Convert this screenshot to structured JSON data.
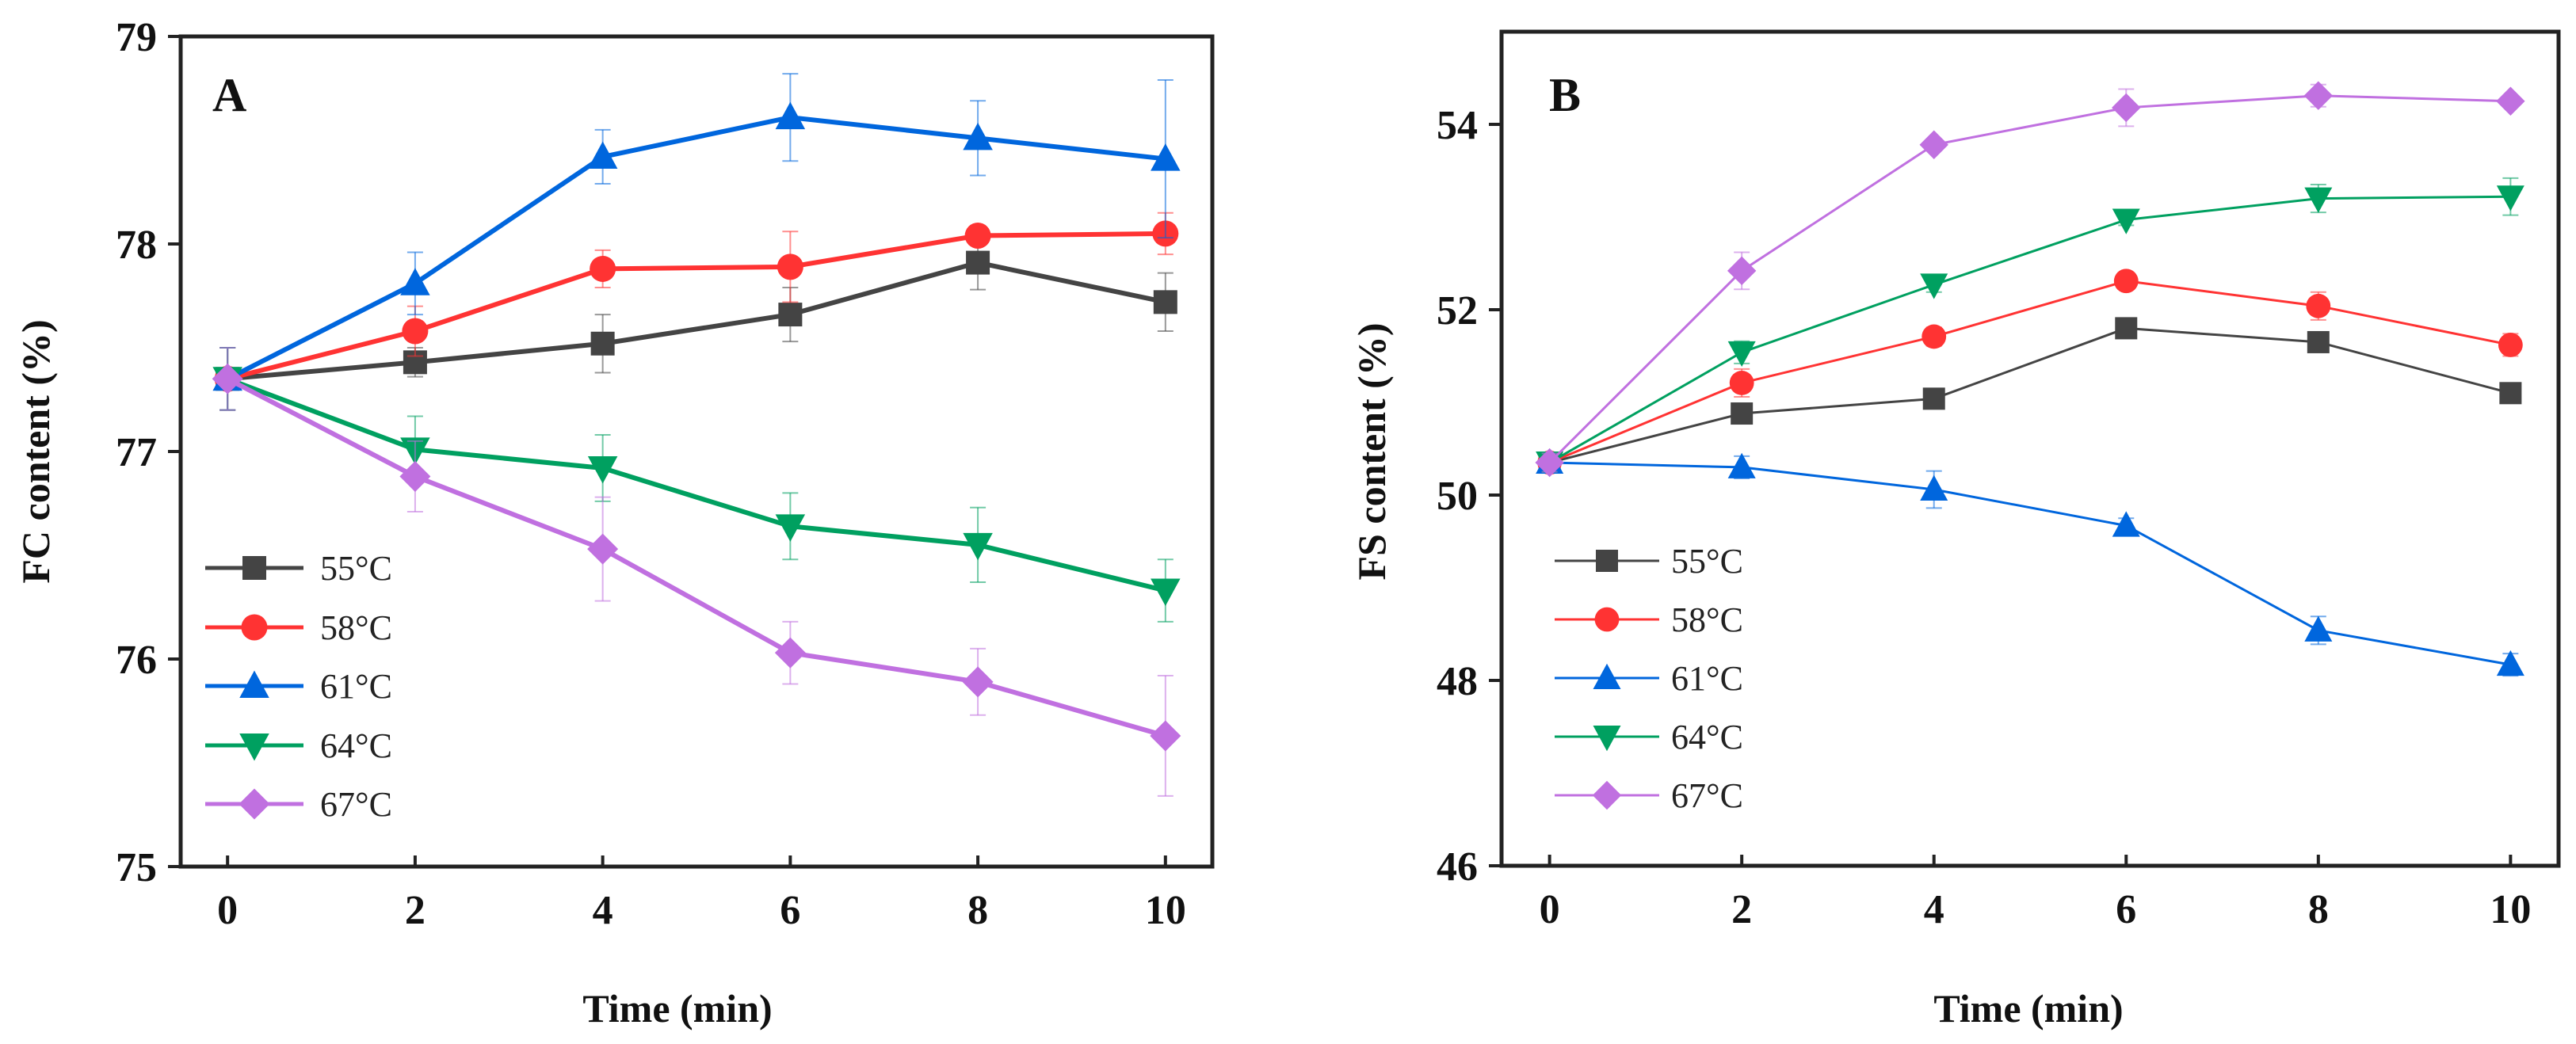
{
  "chart_data": [
    {
      "type": "line",
      "panel_label": "A",
      "xlabel": "Time (min)",
      "ylabel": "FC content (%)",
      "x": [
        0,
        2,
        4,
        6,
        8,
        10
      ],
      "xticks": [
        "0",
        "2",
        "4",
        "6",
        "8",
        "10"
      ],
      "xlim": [
        -0.5,
        10.5
      ],
      "yticks": [
        "75",
        "76",
        "77",
        "78",
        "79"
      ],
      "ylim": [
        75,
        79
      ],
      "legend_position": "bottom-left",
      "series": [
        {
          "name": "55°C",
          "color": "#444444",
          "marker": "square",
          "values": [
            77.35,
            77.43,
            77.52,
            77.66,
            77.91,
            77.72
          ],
          "errors": [
            0.15,
            0.07,
            0.14,
            0.13,
            0.13,
            0.14
          ]
        },
        {
          "name": "58°C",
          "color": "#ff3333",
          "marker": "circle",
          "values": [
            77.35,
            77.58,
            77.88,
            77.89,
            78.04,
            78.05
          ],
          "errors": [
            0.15,
            0.12,
            0.09,
            0.17,
            0.02,
            0.1
          ]
        },
        {
          "name": "61°C",
          "color": "#0066dd",
          "marker": "triangle-up",
          "values": [
            77.35,
            77.81,
            78.42,
            78.61,
            78.51,
            78.41
          ],
          "errors": [
            0.15,
            0.15,
            0.13,
            0.21,
            0.18,
            0.38
          ]
        },
        {
          "name": "64°C",
          "color": "#00a060",
          "marker": "triangle-down",
          "values": [
            77.35,
            77.01,
            76.92,
            76.64,
            76.55,
            76.33
          ],
          "errors": [
            0.15,
            0.16,
            0.16,
            0.16,
            0.18,
            0.15
          ]
        },
        {
          "name": "67°C",
          "color": "#c070e0",
          "marker": "diamond",
          "values": [
            77.35,
            76.88,
            76.53,
            76.03,
            75.89,
            75.63
          ],
          "errors": [
            0.15,
            0.17,
            0.25,
            0.15,
            0.16,
            0.29
          ]
        }
      ]
    },
    {
      "type": "line",
      "panel_label": "B",
      "xlabel": "Time (min)",
      "ylabel": "FS content (%)",
      "x": [
        0,
        2,
        4,
        6,
        8,
        10
      ],
      "xticks": [
        "0",
        "2",
        "4",
        "6",
        "8",
        "10"
      ],
      "xlim": [
        -0.5,
        10.5
      ],
      "yticks": [
        "46",
        "48",
        "50",
        "52",
        "54"
      ],
      "ylim": [
        46,
        55
      ],
      "legend_position": "bottom-left",
      "series": [
        {
          "name": "55°C",
          "color": "#444444",
          "marker": "square",
          "values": [
            50.35,
            50.88,
            51.04,
            51.8,
            51.65,
            51.1
          ],
          "errors": [
            0.1,
            0.08,
            0.08,
            0.06,
            0.08,
            0.08
          ]
        },
        {
          "name": "58°C",
          "color": "#ff3333",
          "marker": "circle",
          "values": [
            50.35,
            51.21,
            51.71,
            52.31,
            52.04,
            51.62
          ],
          "errors": [
            0.1,
            0.15,
            0.1,
            0.06,
            0.15,
            0.12
          ]
        },
        {
          "name": "61°C",
          "color": "#0066dd",
          "marker": "triangle-up",
          "values": [
            50.35,
            50.3,
            50.06,
            49.67,
            48.54,
            48.17
          ],
          "errors": [
            0.1,
            0.12,
            0.2,
            0.08,
            0.15,
            0.12
          ]
        },
        {
          "name": "64°C",
          "color": "#00a060",
          "marker": "triangle-down",
          "values": [
            50.35,
            51.54,
            52.27,
            52.97,
            53.2,
            53.22
          ],
          "errors": [
            0.1,
            0.12,
            0.08,
            0.06,
            0.15,
            0.2
          ]
        },
        {
          "name": "67°C",
          "color": "#c070e0",
          "marker": "diamond",
          "values": [
            50.35,
            52.42,
            53.78,
            54.18,
            54.31,
            54.25
          ],
          "errors": [
            0.1,
            0.2,
            0.05,
            0.2,
            0.12,
            0.05
          ]
        }
      ]
    }
  ]
}
